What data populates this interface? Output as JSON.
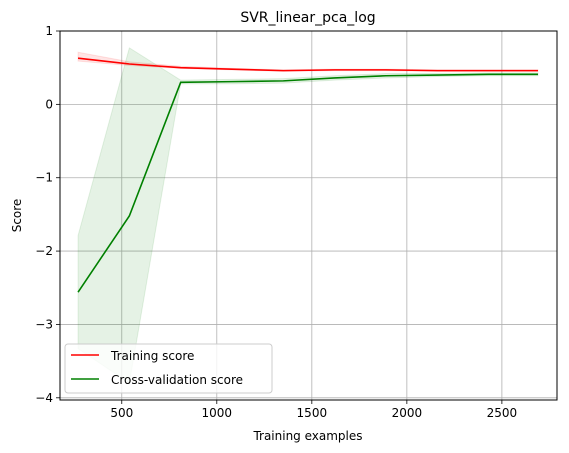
{
  "chart_data": {
    "type": "line",
    "title": "SVR_linear_pca_log",
    "xlabel": "Training examples",
    "ylabel": "Score",
    "xlim": [
      175,
      2790
    ],
    "ylim": [
      -4.03,
      1.0
    ],
    "xticks": [
      500,
      1000,
      1500,
      2000,
      2500
    ],
    "xtick_labels": [
      "500",
      "1000",
      "1500",
      "2000",
      "2500"
    ],
    "yticks": [
      -4,
      -3,
      -2,
      -1,
      0,
      1
    ],
    "ytick_labels": [
      "−4",
      "−3",
      "−2",
      "−1",
      "0",
      "1"
    ],
    "grid": true,
    "legend_position": "lower-left",
    "x": [
      270,
      540,
      810,
      1080,
      1350,
      1620,
      1890,
      2160,
      2430,
      2690
    ],
    "series": [
      {
        "name": "Training score",
        "color": "#ff0000",
        "values": [
          0.63,
          0.55,
          0.5,
          0.48,
          0.46,
          0.47,
          0.47,
          0.46,
          0.46,
          0.46
        ],
        "band_lower": [
          0.59,
          0.53,
          0.49,
          0.47,
          0.45,
          0.46,
          0.46,
          0.45,
          0.45,
          0.45
        ],
        "band_upper": [
          0.71,
          0.58,
          0.52,
          0.49,
          0.47,
          0.48,
          0.48,
          0.47,
          0.47,
          0.47
        ]
      },
      {
        "name": "Cross-validation score",
        "color": "#008000",
        "values": [
          -2.56,
          -1.52,
          0.3,
          0.31,
          0.32,
          0.36,
          0.39,
          0.4,
          0.41,
          0.41
        ],
        "band_lower": [
          -3.33,
          -3.8,
          0.28,
          0.28,
          0.29,
          0.33,
          0.36,
          0.38,
          0.39,
          0.39
        ],
        "band_upper": [
          -1.79,
          0.77,
          0.33,
          0.34,
          0.35,
          0.39,
          0.42,
          0.42,
          0.43,
          0.43
        ]
      }
    ]
  }
}
